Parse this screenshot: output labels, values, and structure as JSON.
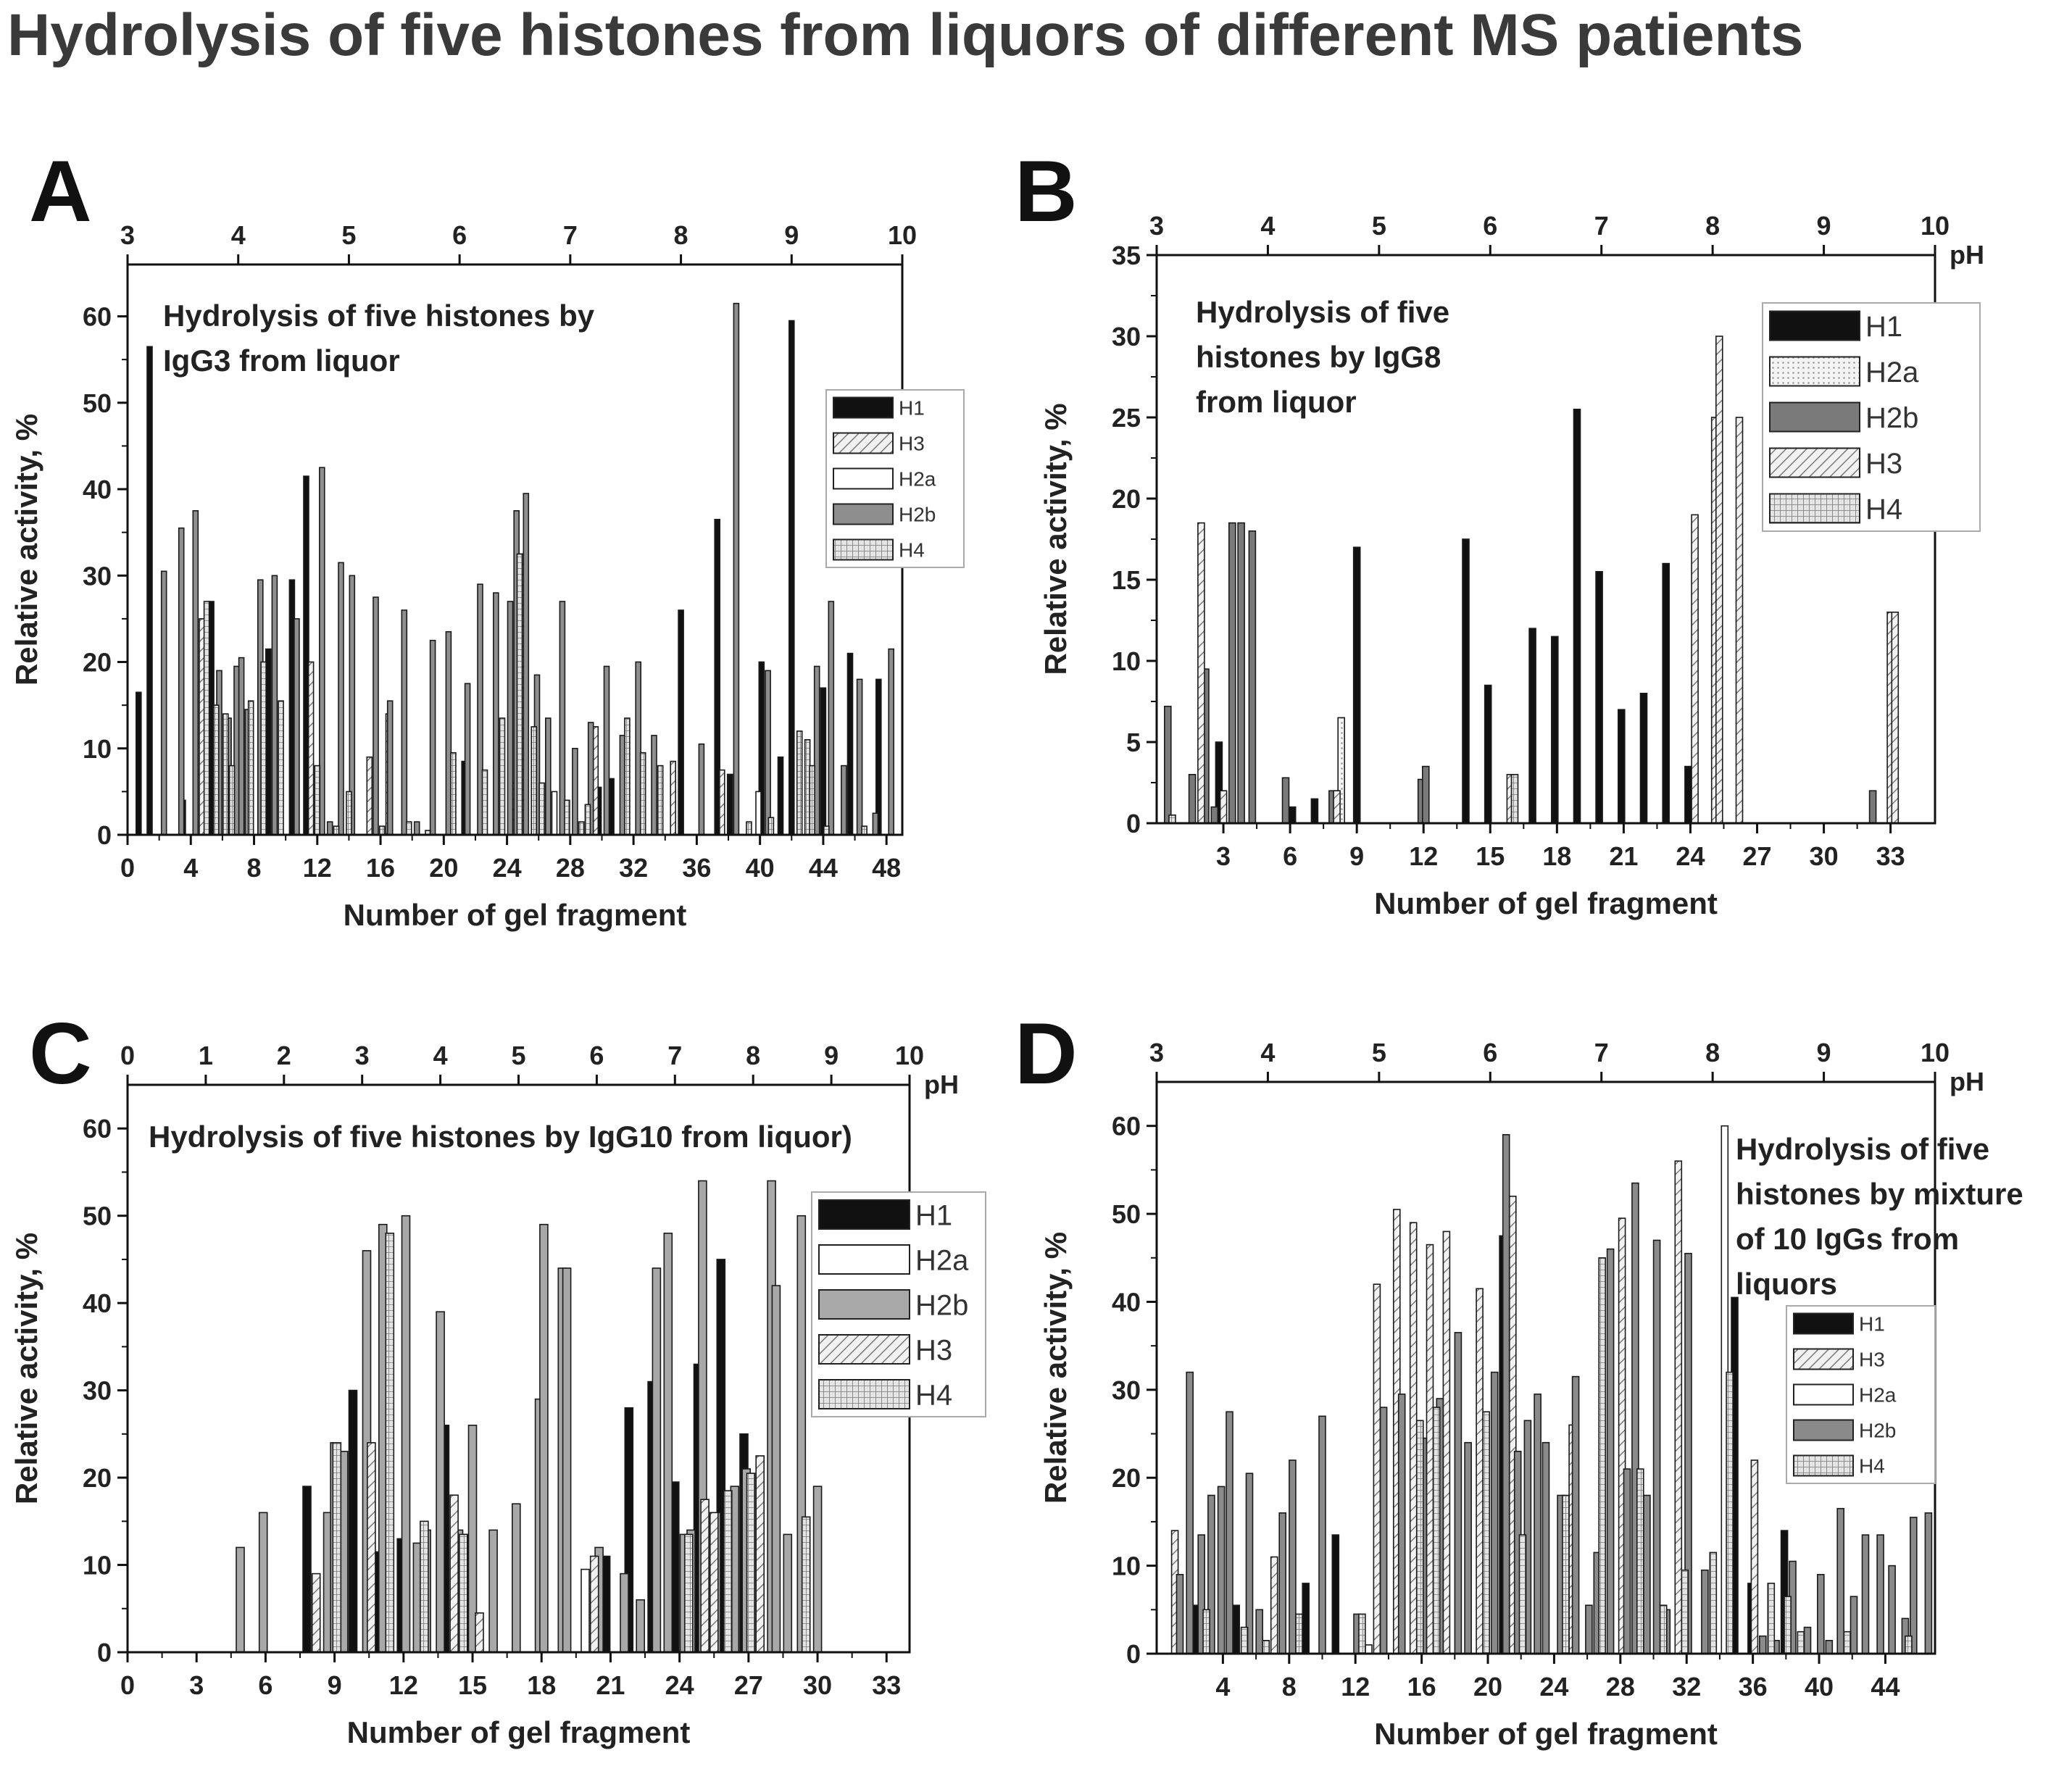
{
  "figure_title": "Hydrolysis of five histones from liquors of different MS patients",
  "chart_data": [
    {
      "panel": "A",
      "type": "bar",
      "annotation": [
        "Hydrolysis of five histones by",
        "IgG3 from liquor"
      ],
      "xlabel": "Number of gel fragment",
      "ylabel": "Relative activity, %",
      "xlim": [
        0,
        49
      ],
      "ylim": [
        0,
        66
      ],
      "xticks": [
        0,
        4,
        8,
        12,
        16,
        20,
        24,
        28,
        32,
        36,
        40,
        44,
        48
      ],
      "yticks": [
        0,
        10,
        20,
        30,
        40,
        50,
        60
      ],
      "top_axis_label": "",
      "top_xlim": [
        3,
        10
      ],
      "top_xticks": [
        3,
        4,
        5,
        6,
        7,
        8,
        9,
        10
      ],
      "legend_position": "middle-right",
      "legend_font": 28,
      "series": [
        {
          "name": "H1",
          "color": "#111111",
          "pattern": "solid",
          "x": [
            0.7,
            1.4,
            3.5,
            5.3,
            8.9,
            10.4,
            11.3,
            21.3,
            29.8,
            30.6,
            35.0,
            37.3,
            38.1,
            40.1,
            41.3,
            42.0,
            44.0,
            45.7,
            47.5
          ],
          "values": [
            16.5,
            56.5,
            4,
            27,
            21.5,
            29.5,
            41.5,
            8.5,
            5.5,
            6.5,
            26,
            36.5,
            7,
            20,
            9,
            59.5,
            17,
            21,
            18
          ]
        },
        {
          "name": "H3",
          "color": "#d8d8d8",
          "pattern": "diag",
          "x": [
            4.7,
            11.6,
            15.3,
            16.5,
            24.5,
            25.0,
            29.6,
            34.5,
            37.6
          ],
          "values": [
            25,
            20,
            9,
            14,
            6,
            32.5,
            12.5,
            8.5,
            7.5
          ]
        },
        {
          "name": "H2a",
          "color": "#ffffff",
          "pattern": "open",
          "x": [
            27.0,
            39.9
          ],
          "values": [
            5,
            5
          ]
        },
        {
          "name": "H2b",
          "color": "#8e8e8e",
          "pattern": "solid",
          "x": [
            2.3,
            3.4,
            4.3,
            5.8,
            6.4,
            6.9,
            7.2,
            7.6,
            8.4,
            9.3,
            10.7,
            12.3,
            12.8,
            13.5,
            14.2,
            15.7,
            16.6,
            17.5,
            18.3,
            19.3,
            20.3,
            21.5,
            22.3,
            23.3,
            24.2,
            24.6,
            25.2,
            25.9,
            26.6,
            27.5,
            28.3,
            29.3,
            30.3,
            31.3,
            32.3,
            33.3,
            36.3,
            38.5,
            40.5,
            43.6,
            44.5,
            45.3,
            46.3,
            47.3,
            48.3
          ],
          "values": [
            30.5,
            35.5,
            37.5,
            19,
            13.5,
            19.5,
            20.5,
            14.5,
            29.5,
            30,
            25,
            42.5,
            1.5,
            31.5,
            30,
            27.5,
            15.5,
            26,
            1.5,
            22.5,
            23.5,
            17.5,
            29,
            28,
            27,
            37.5,
            39.5,
            18.5,
            13.5,
            27,
            10,
            13,
            19.5,
            11.5,
            20,
            11.5,
            10.5,
            61.5,
            19,
            19.5,
            27,
            8,
            18,
            2.5,
            21.5
          ]
        },
        {
          "name": "H4",
          "color": "#bdbdbd",
          "pattern": "grid",
          "x": [
            5.0,
            5.6,
            6.2,
            6.6,
            7.8,
            8.6,
            9.7,
            12.0,
            13.2,
            14.0,
            16.1,
            17.8,
            19.0,
            20.6,
            22.6,
            23.7,
            24.8,
            25.7,
            26.2,
            27.8,
            28.7,
            29.1,
            31.6,
            32.6,
            33.7,
            39.3,
            40.7,
            42.5,
            43.0,
            43.3,
            44.2,
            46.6
          ],
          "values": [
            27,
            15,
            14,
            8,
            15.5,
            20,
            15.5,
            8,
            1,
            5,
            1,
            1.5,
            0.5,
            9.5,
            7.5,
            13.5,
            32.5,
            12.5,
            6,
            4,
            1.5,
            3.5,
            13.5,
            9.5,
            8,
            1.5,
            2,
            12,
            11,
            8,
            1,
            1
          ]
        }
      ]
    },
    {
      "panel": "B",
      "type": "bar",
      "annotation": [
        "Hydrolysis of five",
        "histones by IgG8",
        "from liquor"
      ],
      "xlabel": "Number of gel fragment",
      "ylabel": "Relative activity, %",
      "xlim": [
        0,
        35
      ],
      "ylim": [
        0,
        35
      ],
      "xticks": [
        3,
        6,
        9,
        12,
        15,
        18,
        21,
        24,
        27,
        30,
        33
      ],
      "yticks": [
        0,
        5,
        10,
        15,
        20,
        25,
        30,
        35
      ],
      "top_axis_label": "pH",
      "top_xlim": [
        3,
        10
      ],
      "top_xticks": [
        3,
        4,
        5,
        6,
        7,
        8,
        9,
        10
      ],
      "legend_position": "top-right",
      "legend_font": 40,
      "series": [
        {
          "name": "H1",
          "color": "#111111",
          "pattern": "solid",
          "x": [
            2.8,
            6.1,
            7.1,
            9.0,
            13.9,
            14.9,
            16.9,
            17.9,
            18.9,
            19.9,
            20.9,
            21.9,
            22.9,
            23.9
          ],
          "values": [
            5,
            1,
            1.5,
            17,
            17.5,
            8.5,
            12,
            11.5,
            25.5,
            15.5,
            7,
            8,
            16,
            3.5
          ]
        },
        {
          "name": "H2a",
          "color": "#e9e9e9",
          "pattern": "dots",
          "x": [
            8.3
          ],
          "values": [
            6.5
          ]
        },
        {
          "name": "H2b",
          "color": "#7a7a7a",
          "pattern": "solid",
          "x": [
            0.5,
            1.6,
            2.2,
            2.6,
            3.4,
            3.8,
            4.3,
            5.8,
            7.9,
            11.9,
            12.1,
            32.2
          ],
          "values": [
            7.2,
            3,
            9.5,
            1,
            18.5,
            18.5,
            18,
            2.8,
            2,
            2.7,
            3.5,
            2
          ]
        },
        {
          "name": "H3",
          "color": "#a8a8a8",
          "pattern": "diag",
          "x": [
            2.0,
            3.0,
            8.1,
            15.9,
            24.2,
            25.1,
            25.3,
            26.2,
            33.0,
            33.2
          ],
          "values": [
            18.5,
            2,
            2,
            3,
            19,
            25,
            30,
            25,
            13,
            13
          ]
        },
        {
          "name": "H4",
          "color": "#c6c6c6",
          "pattern": "grid",
          "x": [
            0.7,
            16.1
          ],
          "values": [
            0.5,
            3
          ]
        }
      ]
    },
    {
      "panel": "C",
      "type": "bar",
      "annotation": [
        "Hydrolysis of five histones by IgG10 from liquor)"
      ],
      "xlabel": "Number of gel fragment",
      "ylabel": "Relative activity, %",
      "xlim": [
        0,
        34
      ],
      "ylim": [
        0,
        65
      ],
      "xticks": [
        0,
        3,
        6,
        9,
        12,
        15,
        18,
        21,
        24,
        27,
        30,
        33
      ],
      "yticks": [
        0,
        10,
        20,
        30,
        40,
        50,
        60
      ],
      "top_axis_label": "pH",
      "top_xlim": [
        0,
        10
      ],
      "top_xticks": [
        0,
        1,
        2,
        3,
        4,
        5,
        6,
        7,
        8,
        9,
        10
      ],
      "legend_position": "middle-right",
      "legend_font": 40,
      "series": [
        {
          "name": "H1",
          "color": "#111111",
          "pattern": "solid",
          "x": [
            7.8,
            9.8,
            10.8,
            11.9,
            13.8,
            14.8,
            20.8,
            21.8,
            22.8,
            23.8,
            24.8,
            25.8,
            26.8
          ],
          "values": [
            19,
            30,
            11.5,
            13,
            26,
            13.5,
            11,
            28,
            31,
            19.5,
            33,
            45,
            25
          ]
        },
        {
          "name": "H2a",
          "color": "#ffffff",
          "pattern": "open",
          "x": [
            19.9
          ],
          "values": [
            9.5
          ]
        },
        {
          "name": "H2b",
          "color": "#a8a8a8",
          "pattern": "solid",
          "x": [
            4.9,
            5.9,
            8.7,
            9.0,
            9.4,
            10.4,
            11.1,
            12.1,
            12.6,
            13.0,
            13.6,
            14.4,
            15.0,
            15.9,
            16.9,
            17.9,
            18.1,
            18.9,
            19.1,
            20.5,
            21.6,
            22.3,
            23.0,
            23.5,
            24.2,
            24.5,
            25.0,
            25.6,
            26.4,
            26.9,
            28.0,
            28.2,
            28.7,
            29.3,
            30.0
          ],
          "values": [
            12,
            16,
            16,
            24,
            23,
            46,
            49,
            50,
            12.5,
            14,
            39,
            14,
            26,
            14,
            17,
            29,
            49,
            44,
            44,
            12,
            9,
            6,
            44,
            48,
            13.5,
            14,
            54,
            16,
            19,
            21,
            54,
            42,
            13.5,
            50,
            19
          ]
        },
        {
          "name": "H3",
          "color": "#e6e6e6",
          "pattern": "diag",
          "x": [
            8.2,
            10.6,
            14.2,
            15.3,
            20.3,
            25.1,
            25.5,
            27.5
          ],
          "values": [
            9,
            24,
            18,
            4.5,
            11,
            17.5,
            16,
            22.5
          ]
        },
        {
          "name": "H4",
          "color": "#c4c4c4",
          "pattern": "grid",
          "x": [
            9.1,
            11.4,
            12.9,
            14.6,
            24.4,
            26.1,
            27.1,
            29.5
          ],
          "values": [
            24,
            48,
            15,
            13.5,
            13.5,
            18.5,
            20.5,
            15.5
          ]
        }
      ]
    },
    {
      "panel": "D",
      "type": "bar",
      "annotation": [
        "Hydrolysis of five",
        "histones by mixture",
        "of 10 IgGs from",
        "liquors"
      ],
      "xlabel": "Number of gel fragment",
      "ylabel": "Relative activity, %",
      "xlim": [
        0,
        47
      ],
      "ylim": [
        0,
        65
      ],
      "xticks": [
        4,
        8,
        12,
        16,
        20,
        24,
        28,
        32,
        36,
        40,
        44
      ],
      "yticks": [
        0,
        10,
        20,
        30,
        40,
        50,
        60
      ],
      "top_axis_label": "pH",
      "top_xlim": [
        3,
        10
      ],
      "top_xticks": [
        3,
        4,
        5,
        6,
        7,
        8,
        9,
        10
      ],
      "legend_position": "lower-right",
      "legend_font": 28,
      "series": [
        {
          "name": "H1",
          "color": "#111111",
          "pattern": "solid",
          "x": [
            2.3,
            4.8,
            9.0,
            10.8,
            20.9,
            34.9,
            35.9,
            37.9
          ],
          "values": [
            5.5,
            5.5,
            8,
            13.5,
            47.5,
            40.5,
            8,
            14
          ]
        },
        {
          "name": "H3",
          "color": "#cfcfcf",
          "pattern": "diag",
          "x": [
            1.1,
            7.1,
            13.3,
            14.5,
            15.5,
            16.5,
            17.5,
            19.5,
            21.5,
            25.1,
            28.1,
            31.5,
            36.1
          ],
          "values": [
            14,
            11,
            42,
            50.5,
            49,
            46.5,
            48,
            41.5,
            52,
            26,
            49.5,
            56,
            22
          ]
        },
        {
          "name": "H2a",
          "color": "#ffffff",
          "pattern": "open",
          "x": [
            12.8,
            34.3
          ],
          "values": [
            1,
            60
          ]
        },
        {
          "name": "H2b",
          "color": "#8a8a8a",
          "pattern": "solid",
          "x": [
            1.4,
            2.0,
            2.7,
            3.3,
            3.9,
            4.4,
            5.6,
            6.2,
            7.6,
            8.2,
            10.0,
            12.1,
            13.7,
            14.8,
            16.1,
            17.1,
            18.2,
            18.8,
            20.4,
            21.1,
            21.8,
            22.4,
            23.0,
            23.5,
            24.4,
            25.3,
            26.1,
            26.6,
            27.4,
            28.4,
            28.9,
            29.6,
            30.2,
            30.8,
            32.1,
            33.1,
            36.6,
            37.4,
            38.4,
            39.3,
            40.1,
            40.6,
            41.3,
            42.1,
            42.8,
            43.7,
            44.4,
            45.2,
            45.7,
            46.6
          ],
          "values": [
            9,
            32,
            13.5,
            18,
            19,
            27.5,
            20.5,
            5,
            16,
            22,
            27,
            4.5,
            28,
            29.5,
            24.5,
            29,
            36.5,
            24,
            32,
            59,
            23,
            26.5,
            29.5,
            24,
            18,
            31.5,
            5.5,
            11.5,
            46,
            21,
            53.5,
            18,
            47,
            5,
            45.5,
            9.5,
            2,
            1.5,
            10.5,
            3,
            9,
            1.5,
            16.5,
            6.5,
            13.5,
            13.5,
            10,
            4,
            15.5,
            16
          ]
        },
        {
          "name": "H4",
          "color": "#b8b8b8",
          "pattern": "grid",
          "x": [
            3.0,
            5.3,
            6.6,
            8.6,
            12.4,
            15.9,
            16.9,
            19.9,
            22.1,
            24.7,
            26.9,
            29.2,
            30.6,
            31.9,
            33.6,
            34.6,
            37.1,
            38.1,
            38.9,
            41.7,
            45.4
          ],
          "values": [
            5,
            3,
            1.5,
            4.5,
            4.5,
            26.5,
            28,
            27.5,
            13.5,
            18,
            45,
            21,
            5.5,
            9.5,
            11.5,
            32,
            8,
            6.5,
            2.5,
            2.5,
            2
          ]
        }
      ]
    }
  ]
}
